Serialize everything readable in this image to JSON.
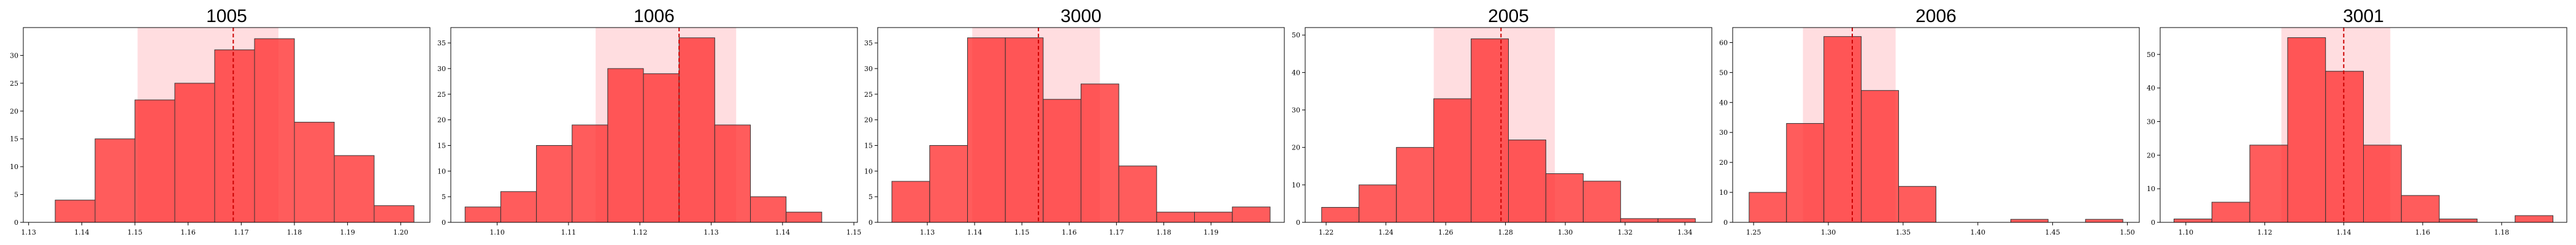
{
  "chart_data": [
    {
      "type": "bar",
      "title": "1005",
      "xlabel": "",
      "ylabel": "",
      "bin_edges": [
        1.135,
        1.1425,
        1.15,
        1.1575,
        1.165,
        1.1725,
        1.18,
        1.1875,
        1.195,
        1.2025
      ],
      "values": [
        4,
        15,
        22,
        25,
        31,
        33,
        18,
        12,
        3,
        1
      ],
      "xlim": [
        1.129,
        1.2055
      ],
      "ylim": [
        0,
        35
      ],
      "xticks": [
        "1.13",
        "1.14",
        "1.15",
        "1.16",
        "1.17",
        "1.18",
        "1.19",
        "1.20"
      ],
      "xtick_values": [
        1.13,
        1.14,
        1.15,
        1.16,
        1.17,
        1.18,
        1.19,
        1.2
      ],
      "yticks": [
        0,
        5,
        10,
        15,
        20,
        25,
        30
      ],
      "mean_line": 1.1685,
      "shaded_interval": [
        1.1505,
        1.177
      ],
      "bar_color": "#ff3333",
      "shade_color": "#ffd1d6",
      "line_color": "#cc0000"
    },
    {
      "type": "bar",
      "title": "1006",
      "xlabel": "",
      "ylabel": "",
      "bin_edges": [
        1.0955,
        1.1005,
        1.1055,
        1.1105,
        1.1155,
        1.1205,
        1.1255,
        1.1305,
        1.1355,
        1.1405,
        1.1455
      ],
      "values": [
        3,
        6,
        15,
        19,
        30,
        29,
        36,
        19,
        5,
        2
      ],
      "xlim": [
        1.0935,
        1.1505
      ],
      "ylim": [
        0,
        38
      ],
      "xticks": [
        "1.10",
        "1.11",
        "1.12",
        "1.13",
        "1.14",
        "1.15"
      ],
      "xtick_values": [
        1.1,
        1.11,
        1.12,
        1.13,
        1.14,
        1.15
      ],
      "yticks": [
        0,
        5,
        10,
        15,
        20,
        25,
        30,
        35
      ],
      "mean_line": 1.1255,
      "shaded_interval": [
        1.1138,
        1.1335
      ],
      "bar_color": "#ff3333",
      "shade_color": "#ffd1d6",
      "line_color": "#cc0000"
    },
    {
      "type": "bar",
      "title": "3000",
      "xlabel": "",
      "ylabel": "",
      "bin_edges": [
        1.1225,
        1.1305,
        1.1385,
        1.1465,
        1.1545,
        1.1625,
        1.1705,
        1.1785,
        1.1865,
        1.1945,
        1.2025
      ],
      "values": [
        8,
        15,
        36,
        36,
        24,
        27,
        11,
        2,
        2,
        3
      ],
      "xlim": [
        1.1195,
        1.2055
      ],
      "ylim": [
        0,
        38
      ],
      "xticks": [
        "1.13",
        "1.14",
        "1.15",
        "1.16",
        "1.17",
        "1.18",
        "1.19"
      ],
      "xtick_values": [
        1.13,
        1.14,
        1.15,
        1.16,
        1.17,
        1.18,
        1.19
      ],
      "yticks": [
        0,
        5,
        10,
        15,
        20,
        25,
        30,
        35
      ],
      "mean_line": 1.1535,
      "shaded_interval": [
        1.1395,
        1.1665
      ],
      "bar_color": "#ff3333",
      "shade_color": "#ffd1d6",
      "line_color": "#cc0000"
    },
    {
      "type": "bar",
      "title": "2005",
      "xlabel": "",
      "ylabel": "",
      "bin_edges": [
        1.2185,
        1.231,
        1.2435,
        1.256,
        1.2685,
        1.281,
        1.2935,
        1.306,
        1.3185,
        1.331,
        1.3435
      ],
      "values": [
        4,
        10,
        20,
        33,
        49,
        22,
        13,
        11,
        1,
        1
      ],
      "xlim": [
        1.213,
        1.349
      ],
      "ylim": [
        0,
        52
      ],
      "xticks": [
        "1.22",
        "1.24",
        "1.26",
        "1.28",
        "1.30",
        "1.32",
        "1.34"
      ],
      "xtick_values": [
        1.22,
        1.24,
        1.26,
        1.28,
        1.3,
        1.32,
        1.34
      ],
      "yticks": [
        0,
        10,
        20,
        30,
        40,
        50
      ],
      "mean_line": 1.2785,
      "shaded_interval": [
        1.256,
        1.2965
      ],
      "bar_color": "#ff3333",
      "shade_color": "#ffd1d6",
      "line_color": "#cc0000"
    },
    {
      "type": "bar",
      "title": "2006",
      "xlabel": "",
      "ylabel": "",
      "bin_edges": [
        1.247,
        1.272,
        1.297,
        1.322,
        1.347,
        1.372,
        1.397,
        1.422,
        1.447,
        1.472,
        1.497
      ],
      "values": [
        10,
        33,
        62,
        44,
        12,
        0,
        0,
        1,
        0,
        1
      ],
      "xlim": [
        1.236,
        1.508
      ],
      "ylim": [
        0,
        65
      ],
      "xticks": [
        "1.25",
        "1.30",
        "1.35",
        "1.40",
        "1.45",
        "1.50"
      ],
      "xtick_values": [
        1.25,
        1.3,
        1.35,
        1.4,
        1.45,
        1.5
      ],
      "yticks": [
        0,
        10,
        20,
        30,
        40,
        50,
        60
      ],
      "mean_line": 1.316,
      "shaded_interval": [
        1.283,
        1.345
      ],
      "bar_color": "#ff3333",
      "shade_color": "#ffd1d6",
      "line_color": "#cc0000"
    },
    {
      "type": "bar",
      "title": "3001",
      "xlabel": "",
      "ylabel": "",
      "bin_edges": [
        1.097,
        1.1066,
        1.1162,
        1.1258,
        1.1354,
        1.145,
        1.1546,
        1.1642,
        1.1738,
        1.1834,
        1.193
      ],
      "values": [
        1,
        6,
        23,
        55,
        45,
        23,
        8,
        1,
        0,
        2
      ],
      "xlim": [
        1.0935,
        1.1965
      ],
      "ylim": [
        0,
        58
      ],
      "xticks": [
        "1.10",
        "1.12",
        "1.14",
        "1.16",
        "1.18"
      ],
      "xtick_values": [
        1.1,
        1.12,
        1.14,
        1.16,
        1.18
      ],
      "yticks": [
        0,
        10,
        20,
        30,
        40,
        50
      ],
      "mean_line": 1.14,
      "shaded_interval": [
        1.1242,
        1.1518
      ],
      "bar_color": "#ff3333",
      "shade_color": "#ffd1d6",
      "line_color": "#cc0000"
    }
  ]
}
